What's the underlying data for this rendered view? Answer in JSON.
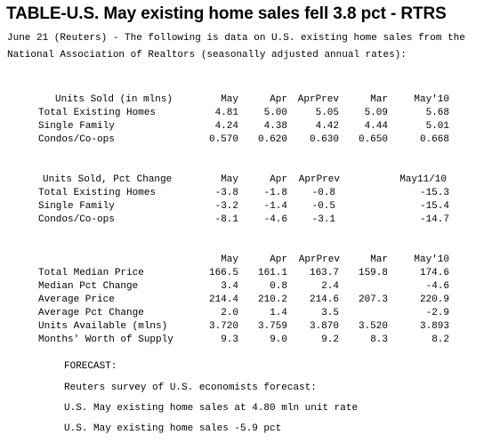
{
  "headline": "TABLE-U.S. May existing home sales fell 3.8 pct - RTRS",
  "intro": [
    "June 21 (Reuters) - The following is data on U.S. existing home sales from the",
    "National Association of Realtors (seasonally adjusted annual rates):"
  ],
  "table1": {
    "header": {
      "label": "Units Sold (in mlns)",
      "c1": "May",
      "c2": "Apr",
      "c3": "AprPrev",
      "c4": "Mar",
      "c5": "May'10"
    },
    "rows": [
      {
        "label": "Total Existing Homes",
        "c1": "4.81",
        "c2": "5.00",
        "c3": "5.05",
        "c4": "5.09",
        "c5": "5.68"
      },
      {
        "label": "Single Family",
        "c1": "4.24",
        "c2": "4.38",
        "c3": "4.42",
        "c4": "4.44",
        "c5": "5.01"
      },
      {
        "label": "Condos/Co-ops",
        "c1": "0.570",
        "c2": "0.620",
        "c3": "0.630",
        "c4": "0.650",
        "c5": "0.668"
      }
    ]
  },
  "table2": {
    "header": {
      "label": "Units Sold, Pct Change",
      "c1": "May",
      "c2": "Apr",
      "c3": "AprPrev",
      "c5": "May11/10"
    },
    "rows": [
      {
        "label": "Total Existing Homes",
        "c1": "-3.8",
        "c2": "-1.8",
        "c3": "-0.8",
        "c5": "-15.3"
      },
      {
        "label": "Single Family",
        "c1": "-3.2",
        "c2": "-1.4",
        "c3": "-0.5",
        "c5": "-15.4"
      },
      {
        "label": "Condos/Co-ops",
        "c1": "-8.1",
        "c2": "-4.6",
        "c3": "-3.1",
        "c5": "-14.7"
      }
    ]
  },
  "table3": {
    "header": {
      "c1": "May",
      "c2": "Apr",
      "c3": "AprPrev",
      "c4": "Mar",
      "c5": "May'10"
    },
    "rows": [
      {
        "label": "Total Median Price",
        "c1": "166.5",
        "c2": "161.1",
        "c3": "163.7",
        "c4": "159.8",
        "c5": "174.6"
      },
      {
        "label": "Median Pct Change",
        "c1": "3.4",
        "c2": "0.8",
        "c3": "2.4",
        "c4": "",
        "c5": "-4.6"
      },
      {
        "label": "Average Price",
        "c1": "214.4",
        "c2": "210.2",
        "c3": "214.6",
        "c4": "207.3",
        "c5": "220.9"
      },
      {
        "label": "Average Pct Change",
        "c1": "2.0",
        "c2": "1.4",
        "c3": "3.5",
        "c4": "",
        "c5": "-2.9"
      },
      {
        "label": "Units Available (mlns)",
        "c1": "3.720",
        "c2": "3.759",
        "c3": "3.870",
        "c4": "3.520",
        "c5": "3.893"
      },
      {
        "label": "Months' Worth of Supply",
        "c1": "9.3",
        "c2": "9.0",
        "c3": "9.2",
        "c4": "8.3",
        "c5": "8.2"
      }
    ]
  },
  "forecast": {
    "title": "FORECAST:",
    "lines": [
      "Reuters survey of U.S. economists forecast:",
      "U.S. May existing home sales at 4.80 mln unit rate",
      "U.S. May existing home sales -5.9 pct"
    ]
  }
}
